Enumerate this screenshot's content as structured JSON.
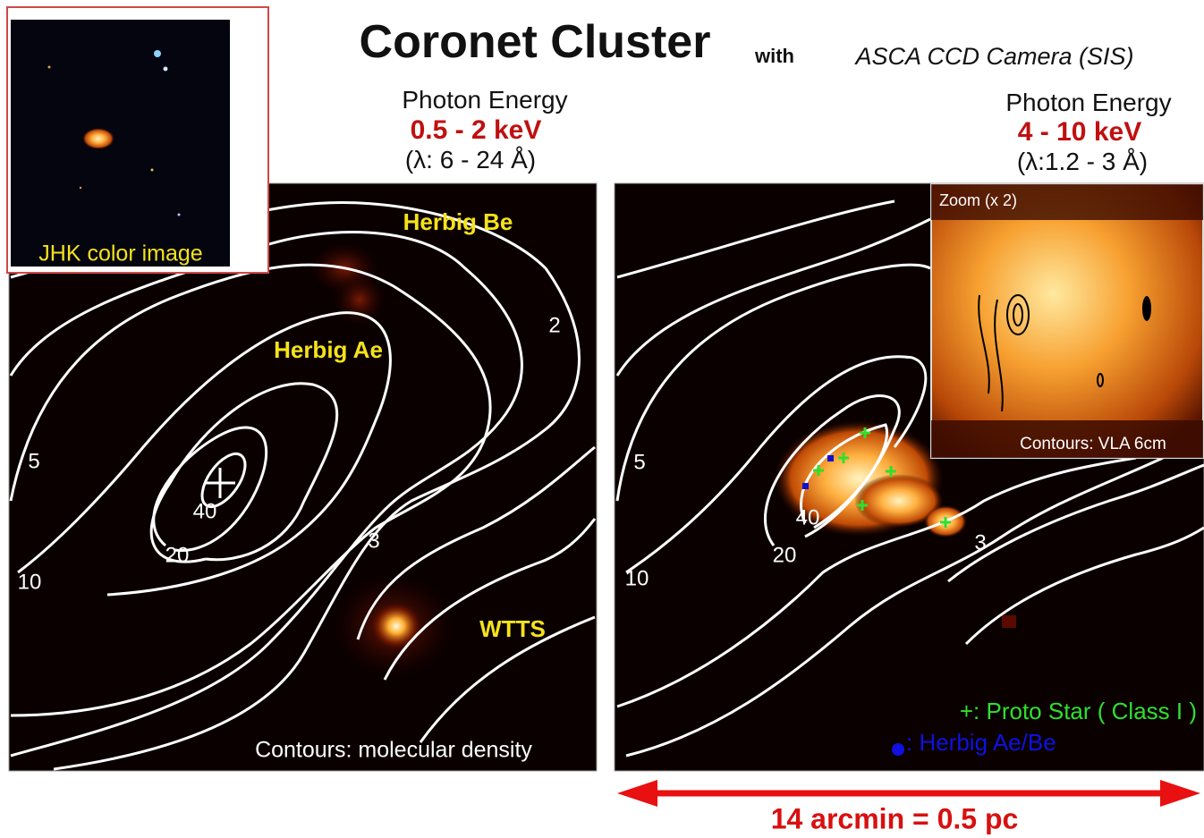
{
  "title": {
    "main": "Coronet Cluster",
    "with": "with",
    "instrument": "ASCA CCD Camera (SIS)"
  },
  "inset": {
    "label": "JHK color image"
  },
  "panels": [
    {
      "header": {
        "line1": "Photon Energy",
        "energy": "0.5 - 2 keV",
        "wavelength": "(λ: 6 - 24 Å)"
      },
      "labels": [
        "Herbig Be",
        "Herbig Ae",
        "2",
        "5",
        "10",
        "20",
        "40",
        "3",
        "WTTS"
      ],
      "caption": "Contours: molecular density"
    },
    {
      "header": {
        "line1": "Photon Energy",
        "energy": "4 - 10 keV",
        "wavelength": "(λ:1.2 - 3 Å)"
      },
      "labels": [
        "5",
        "10",
        "20",
        "40",
        "3"
      ],
      "zoom": {
        "title": "Zoom (x 2)",
        "caption": "Contours:  VLA 6cm"
      },
      "legend": [
        "+: Proto Star ( Class I )",
        ": Herbig Ae/Be"
      ]
    }
  ],
  "scale_bar": {
    "label": "14 arcmin = 0.5 pc"
  }
}
